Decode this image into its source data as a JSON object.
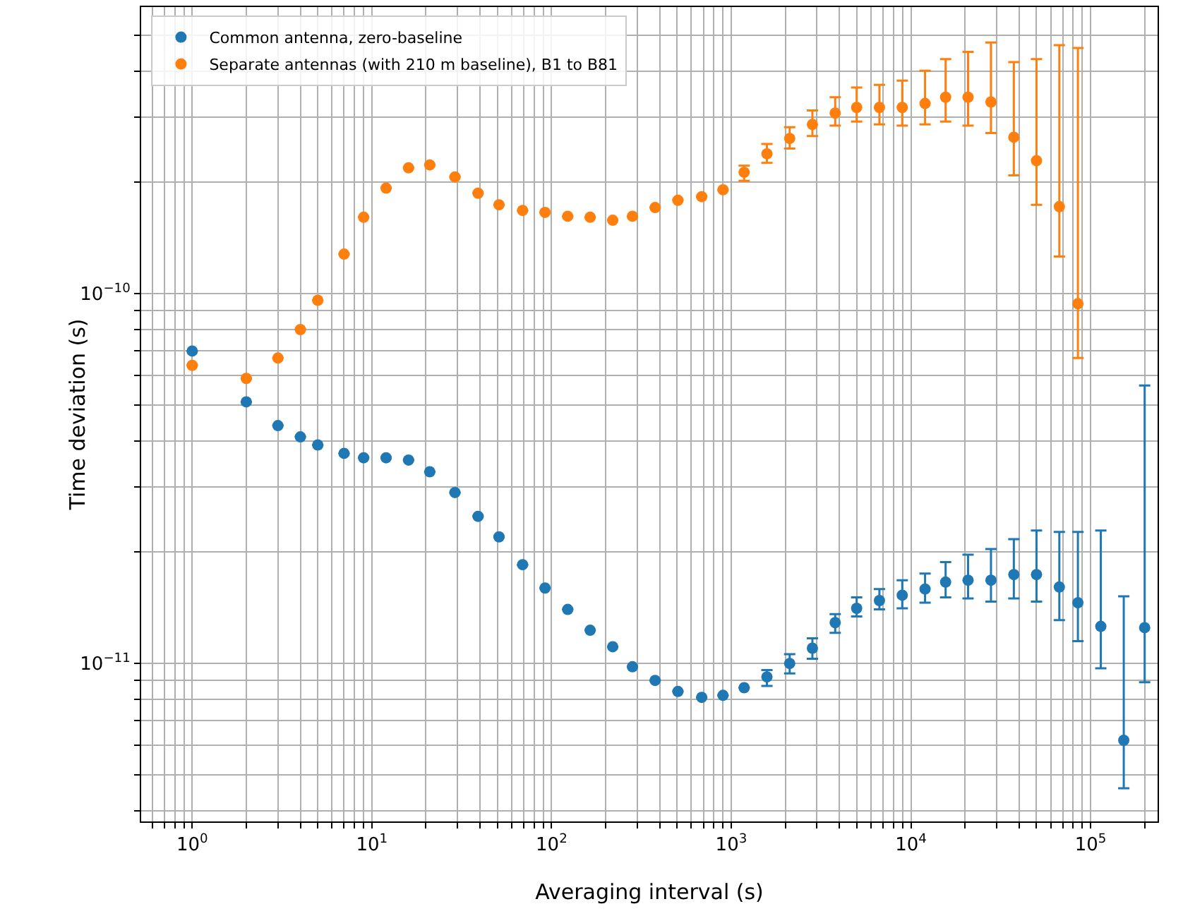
{
  "chart_data": {
    "type": "scatter",
    "xlabel": "Averaging interval (s)",
    "ylabel": "Time deviation (s)",
    "log": "xy",
    "grid": true,
    "legend": "top left",
    "marker": "circle",
    "x": [
      1,
      2,
      3,
      4,
      5,
      7,
      9,
      12,
      16,
      21,
      29,
      39,
      51,
      69,
      92,
      123,
      164,
      219,
      282,
      377,
      505,
      685,
      900,
      1180,
      1580,
      2115,
      2830,
      3790,
      4990,
      6680,
      8950,
      11990,
      15600,
      20800,
      27900,
      37400,
      50000,
      67000,
      85000,
      114000,
      153000,
      200000
    ],
    "xlim": [
      0.52,
      236000
    ],
    "ylim": [
      3.74e-12,
      5.96e-10
    ],
    "xticks": [
      {
        "value": 0.6,
        "label": null
      },
      {
        "value": 0.7,
        "label": null
      },
      {
        "value": 0.8,
        "label": null
      },
      {
        "value": 0.9,
        "label": null
      },
      {
        "value": 1,
        "label": "10$^{0}$"
      },
      {
        "value": 2,
        "label": null
      },
      {
        "value": 3,
        "label": null
      },
      {
        "value": 4,
        "label": null
      },
      {
        "value": 5,
        "label": null
      },
      {
        "value": 6,
        "label": null
      },
      {
        "value": 7,
        "label": null
      },
      {
        "value": 8,
        "label": null
      },
      {
        "value": 9,
        "label": null
      },
      {
        "value": 10,
        "label": "10$^{1}$"
      },
      {
        "value": 20,
        "label": null
      },
      {
        "value": 30,
        "label": null
      },
      {
        "value": 40,
        "label": null
      },
      {
        "value": 50,
        "label": null
      },
      {
        "value": 60,
        "label": null
      },
      {
        "value": 70,
        "label": null
      },
      {
        "value": 80,
        "label": null
      },
      {
        "value": 90,
        "label": null
      },
      {
        "value": 100,
        "label": "10$^{2}$"
      },
      {
        "value": 200,
        "label": null
      },
      {
        "value": 300,
        "label": null
      },
      {
        "value": 400,
        "label": null
      },
      {
        "value": 500,
        "label": null
      },
      {
        "value": 600,
        "label": null
      },
      {
        "value": 700,
        "label": null
      },
      {
        "value": 800,
        "label": null
      },
      {
        "value": 900,
        "label": null
      },
      {
        "value": 1000,
        "label": "10$^{3}$"
      },
      {
        "value": 2000,
        "label": null
      },
      {
        "value": 3000,
        "label": null
      },
      {
        "value": 4000,
        "label": null
      },
      {
        "value": 5000,
        "label": null
      },
      {
        "value": 6000,
        "label": null
      },
      {
        "value": 7000,
        "label": null
      },
      {
        "value": 8000,
        "label": null
      },
      {
        "value": 9000,
        "label": null
      },
      {
        "value": 10000,
        "label": "10$^{4}$"
      },
      {
        "value": 20000,
        "label": null
      },
      {
        "value": 30000,
        "label": null
      },
      {
        "value": 40000,
        "label": null
      },
      {
        "value": 50000,
        "label": null
      },
      {
        "value": 60000,
        "label": null
      },
      {
        "value": 70000,
        "label": null
      },
      {
        "value": 80000,
        "label": null
      },
      {
        "value": 90000,
        "label": null
      },
      {
        "value": 100000,
        "label": "10$^{5}$"
      },
      {
        "value": 200000,
        "label": null
      }
    ],
    "yticks": [
      {
        "value": 4e-12,
        "label": null
      },
      {
        "value": 5e-12,
        "label": null
      },
      {
        "value": 6e-12,
        "label": null
      },
      {
        "value": 7e-12,
        "label": null
      },
      {
        "value": 8e-12,
        "label": null
      },
      {
        "value": 9e-12,
        "label": null
      },
      {
        "value": 1e-11,
        "label": "10$^{−11}$"
      },
      {
        "value": 2e-11,
        "label": null
      },
      {
        "value": 3e-11,
        "label": null
      },
      {
        "value": 4e-11,
        "label": null
      },
      {
        "value": 5e-11,
        "label": null
      },
      {
        "value": 6e-11,
        "label": null
      },
      {
        "value": 7e-11,
        "label": null
      },
      {
        "value": 8e-11,
        "label": null
      },
      {
        "value": 9e-11,
        "label": null
      },
      {
        "value": 1e-10,
        "label": "10$^{−10}$"
      },
      {
        "value": 2e-10,
        "label": null
      },
      {
        "value": 3e-10,
        "label": null
      },
      {
        "value": 4e-10,
        "label": null
      },
      {
        "value": 5e-10,
        "label": null
      }
    ],
    "series": [
      {
        "name": "Common antenna, zero-baseline",
        "color": "#1f77b4",
        "values": [
          7e-11,
          5.1e-11,
          4.4e-11,
          4.1e-11,
          3.9e-11,
          3.7e-11,
          3.6e-11,
          3.6e-11,
          3.55e-11,
          3.3e-11,
          2.9e-11,
          2.5e-11,
          2.2e-11,
          1.85e-11,
          1.6e-11,
          1.4e-11,
          1.23e-11,
          1.11e-11,
          9.8e-12,
          9e-12,
          8.4e-12,
          8.1e-12,
          8.2e-12,
          8.6e-12,
          9.2e-12,
          1e-11,
          1.1e-11,
          1.29e-11,
          1.41e-11,
          1.48e-11,
          1.53e-11,
          1.59e-11,
          1.66e-11,
          1.68e-11,
          1.68e-11,
          1.74e-11,
          1.74e-11,
          1.61e-11,
          1.46e-11,
          1.26e-11,
          6.2e-12,
          1.25e-11
        ],
        "errors": [
          null,
          null,
          null,
          null,
          null,
          null,
          null,
          null,
          null,
          null,
          null,
          null,
          null,
          null,
          null,
          null,
          null,
          null,
          null,
          null,
          null,
          null,
          null,
          null,
          [
            8.7e-12,
            9.6e-12
          ],
          [
            9.4e-12,
            1.06e-11
          ],
          [
            1.03e-11,
            1.17e-11
          ],
          [
            1.21e-11,
            1.36e-11
          ],
          [
            1.34e-11,
            1.51e-11
          ],
          [
            1.4e-11,
            1.59e-11
          ],
          [
            1.41e-11,
            1.68e-11
          ],
          [
            1.46e-11,
            1.75e-11
          ],
          [
            1.51e-11,
            1.88e-11
          ],
          [
            1.5e-11,
            1.97e-11
          ],
          [
            1.47e-11,
            2.04e-11
          ],
          [
            1.5e-11,
            2.17e-11
          ],
          [
            1.47e-11,
            2.29e-11
          ],
          [
            1.31e-11,
            2.27e-11
          ],
          [
            1.15e-11,
            2.27e-11
          ],
          [
            9.7e-12,
            2.29e-11
          ],
          [
            4.6e-12,
            1.52e-11
          ],
          [
            8.9e-12,
            5.65e-11
          ]
        ]
      },
      {
        "name": "Separate antennas (with 210 m baseline), B1 to B81",
        "color": "#ff7f0e",
        "values": [
          6.4e-11,
          5.9e-11,
          6.7e-11,
          8e-11,
          9.6e-11,
          1.28e-10,
          1.61e-10,
          1.93e-10,
          2.19e-10,
          2.23e-10,
          2.07e-10,
          1.87e-10,
          1.74e-10,
          1.68e-10,
          1.66e-10,
          1.62e-10,
          1.61e-10,
          1.58e-10,
          1.62e-10,
          1.71e-10,
          1.79e-10,
          1.83e-10,
          1.91e-10,
          2.13e-10,
          2.39e-10,
          2.63e-10,
          2.87e-10,
          3.08e-10,
          3.19e-10,
          3.19e-10,
          3.19e-10,
          3.27e-10,
          3.4e-10,
          3.4e-10,
          3.3e-10,
          2.65e-10,
          2.29e-10,
          1.72e-10,
          9.4e-11,
          null,
          null,
          null
        ],
        "errors": [
          null,
          null,
          null,
          null,
          null,
          null,
          null,
          null,
          null,
          null,
          null,
          null,
          null,
          null,
          null,
          null,
          null,
          null,
          null,
          null,
          null,
          null,
          null,
          [
            2.02e-10,
            2.22e-10
          ],
          [
            2.26e-10,
            2.54e-10
          ],
          [
            2.47e-10,
            2.82e-10
          ],
          [
            2.67e-10,
            3.13e-10
          ],
          [
            2.85e-10,
            3.4e-10
          ],
          [
            2.92e-10,
            3.61e-10
          ],
          [
            2.87e-10,
            3.67e-10
          ],
          [
            2.85e-10,
            3.77e-10
          ],
          [
            2.87e-10,
            4.01e-10
          ],
          [
            2.92e-10,
            4.31e-10
          ],
          [
            2.85e-10,
            4.51e-10
          ],
          [
            2.72e-10,
            4.78e-10
          ],
          [
            2.09e-10,
            4.23e-10
          ],
          [
            1.74e-10,
            4.31e-10
          ],
          [
            1.26e-10,
            4.7e-10
          ],
          [
            6.7e-11,
            4.62e-10
          ],
          null,
          null,
          null
        ]
      }
    ]
  }
}
